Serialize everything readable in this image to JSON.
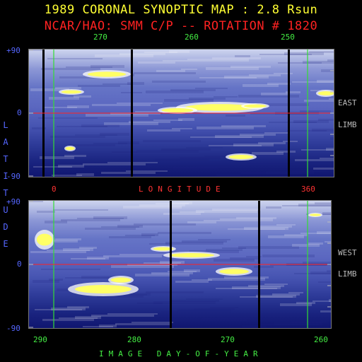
{
  "header": {
    "title": "1989 CORONAL SYNOPTIC MAP : 2.8 Rsun",
    "subtitle": "NCAR/HAO: SMM C/P -- ROTATION # 1820"
  },
  "chart_data": [
    {
      "type": "heatmap",
      "panel": "top",
      "side_label_1": "EAST",
      "side_label_2": "LIMB",
      "top_axis": {
        "ticks": [
          "270",
          "260",
          "250"
        ],
        "values": [
          270,
          260,
          250
        ],
        "color": "#44ee44"
      },
      "bottom_axis": {
        "label": "LONGITUDE",
        "ticks": [
          "0",
          "360"
        ],
        "values": [
          0,
          360
        ],
        "color": "#ff3333"
      },
      "y_axis": {
        "ticks": [
          "+90",
          "0",
          "-90"
        ],
        "values": [
          90,
          0,
          -90
        ],
        "ylim": [
          -90,
          90
        ],
        "color": "#5566ff"
      },
      "zero_line": {
        "value": 0,
        "color": "#ff2222"
      }
    },
    {
      "type": "heatmap",
      "panel": "bottom",
      "side_label_1": "WEST",
      "side_label_2": "LIMB",
      "bottom_axis": {
        "label": "IMAGE DAY-OF-YEAR",
        "ticks": [
          "290",
          "280",
          "270",
          "260"
        ],
        "values": [
          290,
          280,
          270,
          260
        ],
        "color": "#44ee44"
      },
      "y_axis": {
        "ticks": [
          "+90",
          "0",
          "-90"
        ],
        "values": [
          90,
          0,
          -90
        ],
        "ylim": [
          -90,
          90
        ],
        "color": "#5566ff"
      },
      "zero_line": {
        "value": 0,
        "color": "#ff2222"
      }
    }
  ],
  "left_axis_label": [
    "L",
    "A",
    "T",
    "I",
    "T",
    "U",
    "D",
    "E"
  ],
  "colors": {
    "background": "#000000",
    "title": "#ffff33",
    "subtitle": "#ff2222",
    "green_axis": "#44ee44",
    "red_axis": "#ff3333",
    "blue_axis": "#5566ff",
    "bright_feature": "#ffff66"
  }
}
